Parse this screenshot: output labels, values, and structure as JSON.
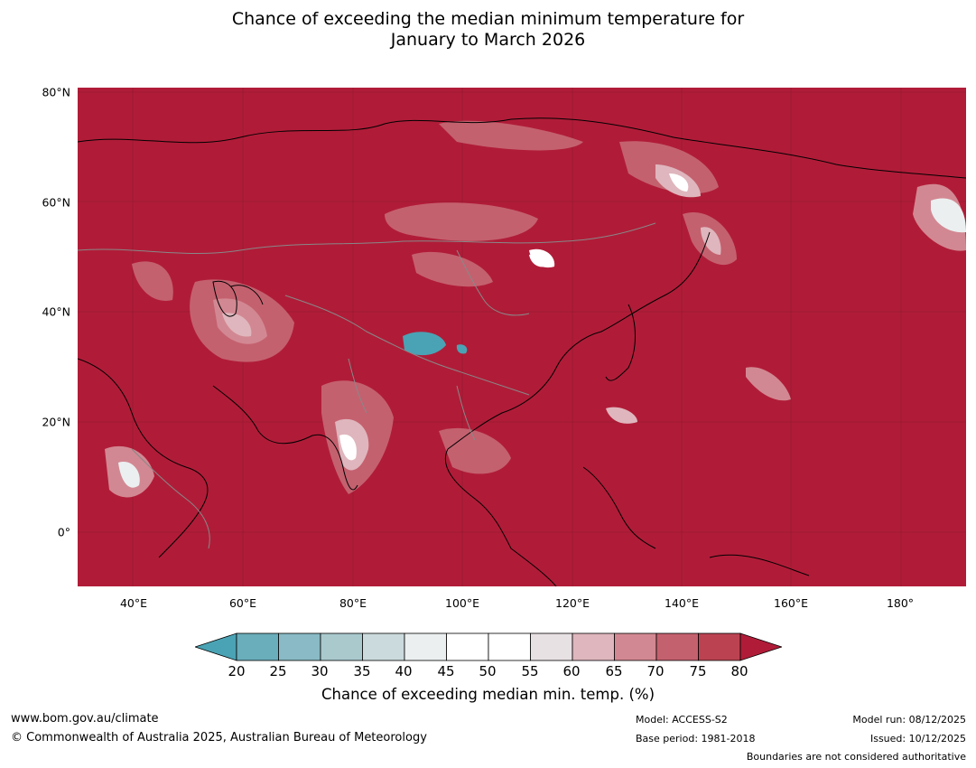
{
  "title": {
    "line1": "Chance of exceeding the median minimum temperature for",
    "line2": "January to March 2026"
  },
  "map": {
    "lat_labels": [
      "80°N",
      "60°N",
      "40°N",
      "20°N",
      "0°"
    ],
    "lon_labels": [
      "40°E",
      "60°E",
      "80°E",
      "100°E",
      "120°E",
      "140°E",
      "160°E",
      "180°"
    ],
    "dominant_category": "80",
    "colors": {
      "ocean_land_high": "#b01c38",
      "cool_anomaly": "#4aa3b4",
      "coastline": "#000000",
      "borders": "#888888"
    }
  },
  "colorbar": {
    "ticks": [
      "20",
      "25",
      "30",
      "35",
      "40",
      "45",
      "50",
      "55",
      "60",
      "65",
      "70",
      "75",
      "80"
    ],
    "colors": [
      "#4aa3b4",
      "#6aadbb",
      "#89bac5",
      "#a9c9cd",
      "#cbdadd",
      "#ebeff0",
      "#ffffff",
      "#ffffff",
      "#e8e1e3",
      "#dfb6bd",
      "#d28892",
      "#c4616f",
      "#bb4351",
      "#b01c38"
    ],
    "caption": "Chance of exceeding median min. temp. (%)"
  },
  "footer": {
    "url": "www.bom.gov.au/climate",
    "copyright": "© Commonwealth of Australia 2025, Australian Bureau of Meteorology",
    "model": "Model: ACCESS-S2",
    "base_period": "Base period: 1981-2018",
    "model_run": "Model run: 08/12/2025",
    "issued": "Issued: 10/12/2025",
    "boundaries_note": "Boundaries are not considered authoritative"
  }
}
